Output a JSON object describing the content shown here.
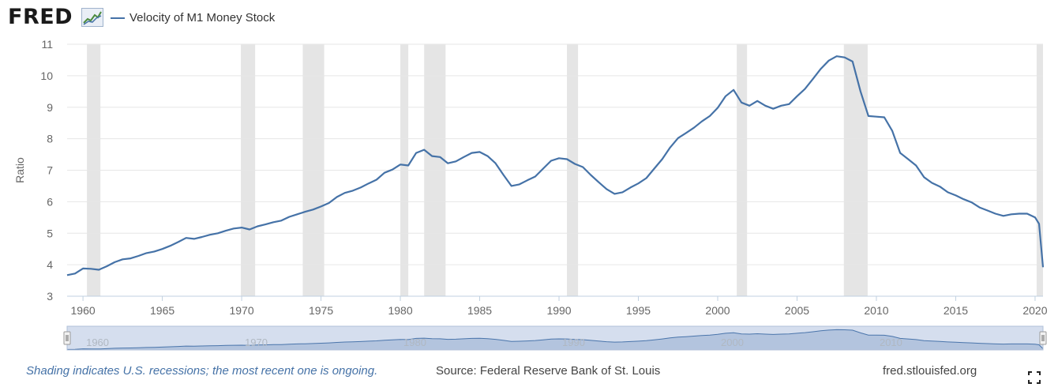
{
  "header": {
    "logo_text": "FRED",
    "legend_label": "Velocity of M1 Money Stock"
  },
  "colors": {
    "series": "#4572a7",
    "recession": "#e5e5e5",
    "grid": "#e6e6e6",
    "navigator_fill": "#c5d2e4",
    "footer_note": "#4572a7"
  },
  "icons": {
    "logo_chart": "line-chart-icon",
    "fullscreen": "expand-icon"
  },
  "footer": {
    "note": "Shading indicates U.S. recessions; the most recent one is ongoing.",
    "source": "Source: Federal Reserve Bank of St. Louis",
    "site": "fred.stlouisfed.org"
  },
  "chart_data": {
    "type": "line",
    "ylabel": "Ratio",
    "ylim": [
      3,
      11
    ],
    "yticks": [
      3,
      4,
      5,
      6,
      7,
      8,
      9,
      10,
      11
    ],
    "xlim": [
      1959.0,
      2020.5
    ],
    "xticks": [
      1960,
      1965,
      1970,
      1975,
      1980,
      1985,
      1990,
      1995,
      2000,
      2005,
      2010,
      2015,
      2020
    ],
    "navigator_labels": [
      1960,
      1970,
      1980,
      1990,
      2000,
      2010
    ],
    "grid": true,
    "legend": "top-left",
    "recessions": [
      [
        1960.25,
        1961.1
      ],
      [
        1969.95,
        1970.85
      ],
      [
        1973.85,
        1975.2
      ],
      [
        1980.0,
        1980.5
      ],
      [
        1981.5,
        1982.85
      ],
      [
        1990.5,
        1991.2
      ],
      [
        2001.2,
        2001.85
      ],
      [
        2007.95,
        2009.45
      ],
      [
        2020.1,
        2020.5
      ]
    ],
    "series": [
      {
        "name": "Velocity of M1 Money Stock",
        "points": [
          [
            1959.0,
            3.67
          ],
          [
            1959.5,
            3.72
          ],
          [
            1960.0,
            3.88
          ],
          [
            1960.5,
            3.87
          ],
          [
            1961.0,
            3.84
          ],
          [
            1961.5,
            3.95
          ],
          [
            1962.0,
            4.08
          ],
          [
            1962.5,
            4.17
          ],
          [
            1963.0,
            4.2
          ],
          [
            1963.5,
            4.28
          ],
          [
            1964.0,
            4.37
          ],
          [
            1964.5,
            4.42
          ],
          [
            1965.0,
            4.5
          ],
          [
            1965.5,
            4.6
          ],
          [
            1966.0,
            4.72
          ],
          [
            1966.5,
            4.85
          ],
          [
            1967.0,
            4.82
          ],
          [
            1967.5,
            4.88
          ],
          [
            1968.0,
            4.95
          ],
          [
            1968.5,
            5.0
          ],
          [
            1969.0,
            5.08
          ],
          [
            1969.5,
            5.15
          ],
          [
            1970.0,
            5.18
          ],
          [
            1970.5,
            5.12
          ],
          [
            1971.0,
            5.22
          ],
          [
            1971.5,
            5.28
          ],
          [
            1972.0,
            5.35
          ],
          [
            1972.5,
            5.4
          ],
          [
            1973.0,
            5.52
          ],
          [
            1973.5,
            5.6
          ],
          [
            1974.0,
            5.68
          ],
          [
            1974.5,
            5.75
          ],
          [
            1975.0,
            5.85
          ],
          [
            1975.5,
            5.96
          ],
          [
            1976.0,
            6.15
          ],
          [
            1976.5,
            6.28
          ],
          [
            1977.0,
            6.35
          ],
          [
            1977.5,
            6.45
          ],
          [
            1978.0,
            6.58
          ],
          [
            1978.5,
            6.7
          ],
          [
            1979.0,
            6.92
          ],
          [
            1979.5,
            7.02
          ],
          [
            1980.0,
            7.18
          ],
          [
            1980.5,
            7.15
          ],
          [
            1981.0,
            7.55
          ],
          [
            1981.5,
            7.65
          ],
          [
            1982.0,
            7.45
          ],
          [
            1982.5,
            7.42
          ],
          [
            1983.0,
            7.22
          ],
          [
            1983.5,
            7.28
          ],
          [
            1984.0,
            7.42
          ],
          [
            1984.5,
            7.55
          ],
          [
            1985.0,
            7.58
          ],
          [
            1985.5,
            7.45
          ],
          [
            1986.0,
            7.22
          ],
          [
            1986.5,
            6.85
          ],
          [
            1987.0,
            6.5
          ],
          [
            1987.5,
            6.55
          ],
          [
            1988.0,
            6.68
          ],
          [
            1988.5,
            6.8
          ],
          [
            1989.0,
            7.05
          ],
          [
            1989.5,
            7.3
          ],
          [
            1990.0,
            7.38
          ],
          [
            1990.5,
            7.35
          ],
          [
            1991.0,
            7.2
          ],
          [
            1991.5,
            7.1
          ],
          [
            1992.0,
            6.85
          ],
          [
            1992.5,
            6.62
          ],
          [
            1993.0,
            6.4
          ],
          [
            1993.5,
            6.25
          ],
          [
            1994.0,
            6.3
          ],
          [
            1994.5,
            6.45
          ],
          [
            1995.0,
            6.58
          ],
          [
            1995.5,
            6.75
          ],
          [
            1996.0,
            7.05
          ],
          [
            1996.5,
            7.35
          ],
          [
            1997.0,
            7.72
          ],
          [
            1997.5,
            8.02
          ],
          [
            1998.0,
            8.18
          ],
          [
            1998.5,
            8.35
          ],
          [
            1999.0,
            8.55
          ],
          [
            1999.5,
            8.72
          ],
          [
            2000.0,
            8.98
          ],
          [
            2000.5,
            9.35
          ],
          [
            2001.0,
            9.55
          ],
          [
            2001.5,
            9.15
          ],
          [
            2002.0,
            9.05
          ],
          [
            2002.5,
            9.2
          ],
          [
            2003.0,
            9.05
          ],
          [
            2003.5,
            8.95
          ],
          [
            2004.0,
            9.05
          ],
          [
            2004.5,
            9.1
          ],
          [
            2005.0,
            9.35
          ],
          [
            2005.5,
            9.58
          ],
          [
            2006.0,
            9.9
          ],
          [
            2006.5,
            10.22
          ],
          [
            2007.0,
            10.48
          ],
          [
            2007.5,
            10.62
          ],
          [
            2008.0,
            10.58
          ],
          [
            2008.5,
            10.45
          ],
          [
            2009.0,
            9.5
          ],
          [
            2009.5,
            8.72
          ],
          [
            2010.0,
            8.7
          ],
          [
            2010.5,
            8.68
          ],
          [
            2011.0,
            8.25
          ],
          [
            2011.5,
            7.55
          ],
          [
            2012.0,
            7.35
          ],
          [
            2012.5,
            7.15
          ],
          [
            2013.0,
            6.78
          ],
          [
            2013.5,
            6.6
          ],
          [
            2014.0,
            6.48
          ],
          [
            2014.5,
            6.3
          ],
          [
            2015.0,
            6.2
          ],
          [
            2015.5,
            6.08
          ],
          [
            2016.0,
            5.98
          ],
          [
            2016.5,
            5.82
          ],
          [
            2017.0,
            5.72
          ],
          [
            2017.5,
            5.62
          ],
          [
            2018.0,
            5.55
          ],
          [
            2018.5,
            5.6
          ],
          [
            2019.0,
            5.62
          ],
          [
            2019.5,
            5.62
          ],
          [
            2020.0,
            5.5
          ],
          [
            2020.25,
            5.3
          ],
          [
            2020.5,
            3.92
          ]
        ]
      }
    ]
  }
}
